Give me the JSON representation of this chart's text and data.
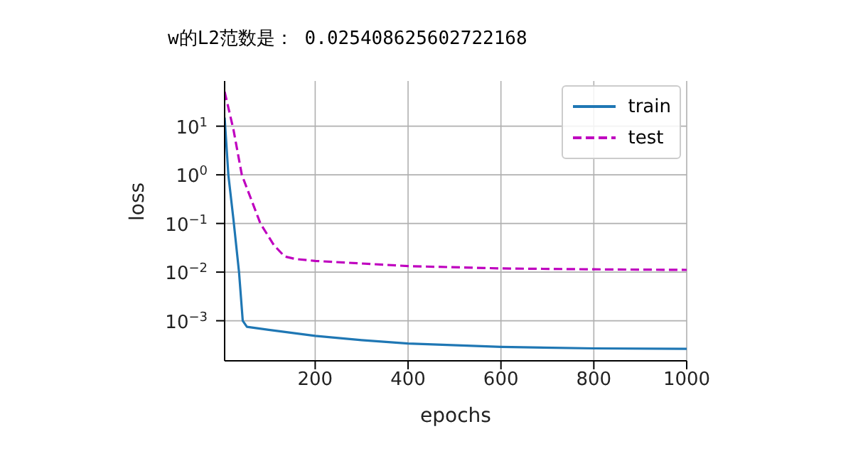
{
  "chart_data": {
    "type": "line",
    "title": "w的L2范数是： 0.025408625602722168",
    "xlabel": "epochs",
    "ylabel": "loss",
    "xlim": [
      5,
      1000
    ],
    "xticks": [
      200,
      400,
      600,
      800,
      1000
    ],
    "ylim": [
      0.00015,
      85
    ],
    "log": true,
    "yticks": [
      {
        "value": 0.001,
        "label": "10$^{−3}$"
      },
      {
        "value": 0.01,
        "label": "10$^{−2}$"
      },
      {
        "value": 0.1,
        "label": "10$^{−1}$"
      },
      {
        "value": 1,
        "label": "10$^{0}$"
      },
      {
        "value": 10,
        "label": "10$^{1}$"
      }
    ],
    "grid": true,
    "legend": "top right",
    "marker": "none",
    "series": [
      {
        "name": "train",
        "color": "#1f77b4",
        "line_style": "solid",
        "x": [
          5,
          13,
          24,
          36,
          44,
          53,
          100,
          200,
          300,
          400,
          600,
          800,
          1000
        ],
        "values": [
          15,
          1,
          0.12,
          0.01,
          0.001,
          0.00075,
          0.00065,
          0.00049,
          0.0004,
          0.00034,
          0.00029,
          0.00027,
          0.000265
        ]
      },
      {
        "name": "test",
        "color": "#bf00bf",
        "line_style": "dashed",
        "x": [
          5,
          24,
          42,
          82,
          111,
          134,
          157,
          200,
          400,
          600,
          800,
          1000
        ],
        "values": [
          51,
          8.5,
          1,
          0.1,
          0.036,
          0.021,
          0.0186,
          0.017,
          0.0133,
          0.0119,
          0.0114,
          0.0111
        ]
      }
    ]
  }
}
